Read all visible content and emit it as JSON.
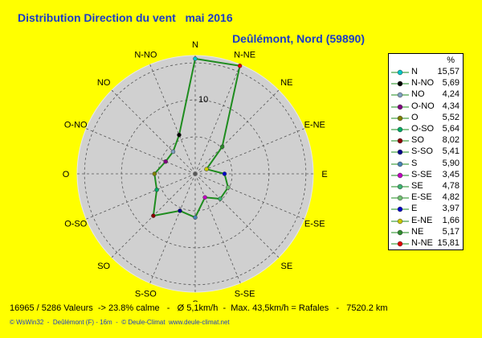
{
  "header": {
    "title": "Distribution Direction du vent   mai 2016",
    "subtitle": "Deûlémont, Nord (59890)"
  },
  "chart_data": {
    "type": "radar",
    "title": "Distribution Direction du vent   mai 2016",
    "unit": "%",
    "ring_label": "10",
    "rmax": 16,
    "rings": [
      5,
      10,
      15
    ],
    "directions": [
      "N",
      "N-NE",
      "NE",
      "E-NE",
      "E",
      "E-SE",
      "SE",
      "S-SE",
      "S",
      "S-SO",
      "SO",
      "O-SO",
      "O",
      "O-NO",
      "NO",
      "N-NO"
    ],
    "values": [
      15.57,
      15.81,
      5.17,
      1.66,
      3.97,
      4.82,
      4.78,
      3.45,
      5.9,
      5.41,
      8.02,
      5.64,
      5.52,
      4.34,
      4.24,
      5.69
    ],
    "marker_colors": [
      "#00c8c8",
      "#e00000",
      "#2e8b2e",
      "#c8c800",
      "#0000c8",
      "#6fbf6f",
      "#3cb371",
      "#c000c0",
      "#4682b4",
      "#00008b",
      "#8b0000",
      "#00aa66",
      "#808000",
      "#800080",
      "#7fa0c0",
      "#000000"
    ],
    "series_color": "#1e8c1e",
    "grid": true
  },
  "legend": {
    "unit": "%",
    "items": [
      {
        "dir": "N",
        "value": "15,57",
        "color": "#00c8c8"
      },
      {
        "dir": "N-NO",
        "value": "5,69",
        "color": "#000000"
      },
      {
        "dir": "NO",
        "value": "4,24",
        "color": "#7fa0c0"
      },
      {
        "dir": "O-NO",
        "value": "4,34",
        "color": "#800080"
      },
      {
        "dir": "O",
        "value": "5,52",
        "color": "#808000"
      },
      {
        "dir": "O-SO",
        "value": "5,64",
        "color": "#00aa66"
      },
      {
        "dir": "SO",
        "value": "8,02",
        "color": "#8b0000"
      },
      {
        "dir": "S-SO",
        "value": "5,41",
        "color": "#00008b"
      },
      {
        "dir": "S",
        "value": "5,90",
        "color": "#4682b4"
      },
      {
        "dir": "S-SE",
        "value": "3,45",
        "color": "#c000c0"
      },
      {
        "dir": "SE",
        "value": "4,78",
        "color": "#3cb371"
      },
      {
        "dir": "E-SE",
        "value": "4,82",
        "color": "#6fbf6f"
      },
      {
        "dir": "E",
        "value": "3,97",
        "color": "#0000c8"
      },
      {
        "dir": "E-NE",
        "value": "1,66",
        "color": "#c8c800"
      },
      {
        "dir": "NE",
        "value": "5,17",
        "color": "#2e8b2e"
      },
      {
        "dir": "N-NE",
        "value": "15,81",
        "color": "#e00000"
      }
    ]
  },
  "footer": {
    "stats": "16965 / 5286 Valeurs  -> 23.8% calme   -   Ø 5,1km/h  -  Max. 43,5km/h = Rafales   -   7520.2 km",
    "credits": "© WsWin32  -  Deûlémont (F) - 16m  -  © Deule-Climat  www.deule-climat.net"
  }
}
